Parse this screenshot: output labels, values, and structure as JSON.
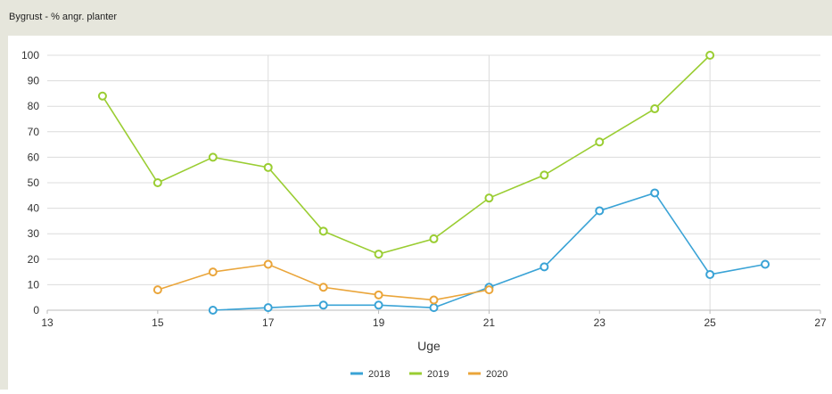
{
  "window": {
    "title": "Bygrust - % angr. planter"
  },
  "colors": {
    "background": "#e6e6dc",
    "panel": "#ffffff",
    "grid": "#dcdcdc",
    "axis_text": "#333333"
  },
  "chart_data": {
    "type": "line",
    "title": "",
    "xlabel": "Uge",
    "ylabel": "",
    "xlim": [
      13,
      27
    ],
    "ylim": [
      0,
      100
    ],
    "x_ticks": [
      13,
      15,
      17,
      19,
      21,
      23,
      25,
      27
    ],
    "y_ticks": [
      0,
      10,
      20,
      30,
      40,
      50,
      60,
      70,
      80,
      90,
      100
    ],
    "grid": {
      "horizontal": true,
      "vertical_at": [
        17,
        21,
        25
      ]
    },
    "legend_position": "bottom-center",
    "series": [
      {
        "name": "2018",
        "color": "#3aa3d6",
        "points": [
          [
            16,
            0
          ],
          [
            17,
            1
          ],
          [
            18,
            2
          ],
          [
            19,
            2
          ],
          [
            20,
            1
          ],
          [
            21,
            9
          ],
          [
            22,
            17
          ],
          [
            23,
            39
          ],
          [
            24,
            46
          ],
          [
            25,
            14
          ],
          [
            26,
            18
          ]
        ]
      },
      {
        "name": "2019",
        "color": "#9acd32",
        "points": [
          [
            14,
            84
          ],
          [
            15,
            50
          ],
          [
            16,
            60
          ],
          [
            17,
            56
          ],
          [
            18,
            31
          ],
          [
            19,
            22
          ],
          [
            20,
            28
          ],
          [
            21,
            44
          ],
          [
            22,
            53
          ],
          [
            23,
            66
          ],
          [
            24,
            79
          ],
          [
            25,
            100
          ]
        ]
      },
      {
        "name": "2020",
        "color": "#eaa53a",
        "points": [
          [
            15,
            8
          ],
          [
            16,
            15
          ],
          [
            17,
            18
          ],
          [
            18,
            9
          ],
          [
            19,
            6
          ],
          [
            20,
            4
          ],
          [
            21,
            8
          ]
        ]
      }
    ]
  }
}
